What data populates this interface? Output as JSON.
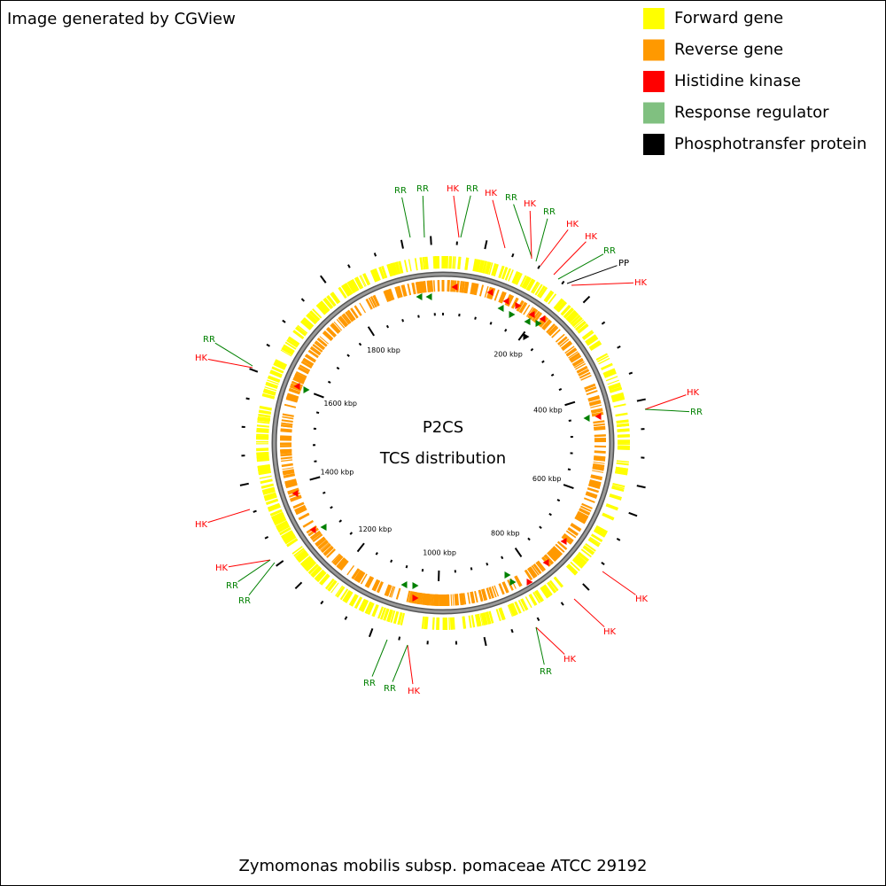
{
  "header": {
    "credit": "Image generated by CGView"
  },
  "legend": [
    {
      "label": "Forward gene",
      "color": "#ffff00"
    },
    {
      "label": "Reverse gene",
      "color": "#ff9900"
    },
    {
      "label": "Histidine kinase",
      "color": "#ff0000"
    },
    {
      "label": "Response regulator",
      "color": "#80c080"
    },
    {
      "label": "Phosphotransfer protein",
      "color": "#000000"
    }
  ],
  "map": {
    "title": "P2CS",
    "subtitle": "TCS distribution",
    "scale_labels": [
      "200 kbp",
      "400 kbp",
      "600 kbp",
      "800 kbp",
      "1000 kbp",
      "1200 kbp",
      "1400 kbp",
      "1600 kbp",
      "1800 kbp"
    ],
    "annotations": [
      "RR",
      "RR",
      "HK",
      "RR",
      "HK",
      "RR",
      "HK",
      "RR",
      "HK",
      "HK",
      "RR",
      "PP",
      "HK",
      "HK",
      "RR",
      "HK",
      "HK",
      "HK",
      "RR",
      "HK",
      "RR",
      "RR",
      "HK",
      "RR",
      "RR",
      "HK",
      "RR",
      "HK"
    ]
  },
  "footer": {
    "organism": "Zymomonas mobilis subsp. pomaceae ATCC 29192"
  }
}
